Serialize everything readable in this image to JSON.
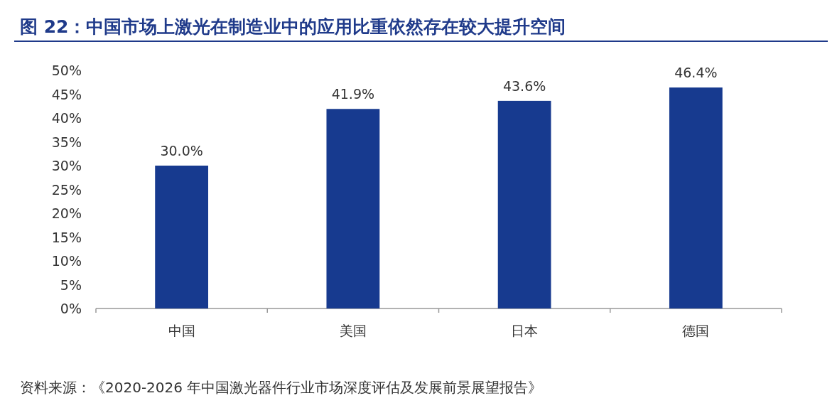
{
  "chart_data": {
    "type": "bar",
    "title": "图 22：中国市场上激光在制造业中的应用比重依然存在较大提升空间",
    "categories": [
      "中国",
      "美国",
      "日本",
      "德国"
    ],
    "values": [
      30.0,
      41.9,
      43.6,
      46.4
    ],
    "value_labels": [
      "30.0%",
      "41.9%",
      "43.6%",
      "46.4%"
    ],
    "color": "#173a8f",
    "ylim": [
      0,
      50
    ],
    "yticks": [
      {
        "value": 0,
        "label": "0%"
      },
      {
        "value": 5,
        "label": "5%"
      },
      {
        "value": 10,
        "label": "10%"
      },
      {
        "value": 15,
        "label": "15%"
      },
      {
        "value": 20,
        "label": "20%"
      },
      {
        "value": 25,
        "label": "25%"
      },
      {
        "value": 30,
        "label": "30%"
      },
      {
        "value": 35,
        "label": "35%"
      },
      {
        "value": 40,
        "label": "40%"
      },
      {
        "value": 45,
        "label": "45%"
      },
      {
        "value": 50,
        "label": "50%"
      }
    ],
    "annotations": [
      "资料来源：《2020-2026 年中国激光器件行业市场深度评估及发展前景展望报告》"
    ]
  }
}
